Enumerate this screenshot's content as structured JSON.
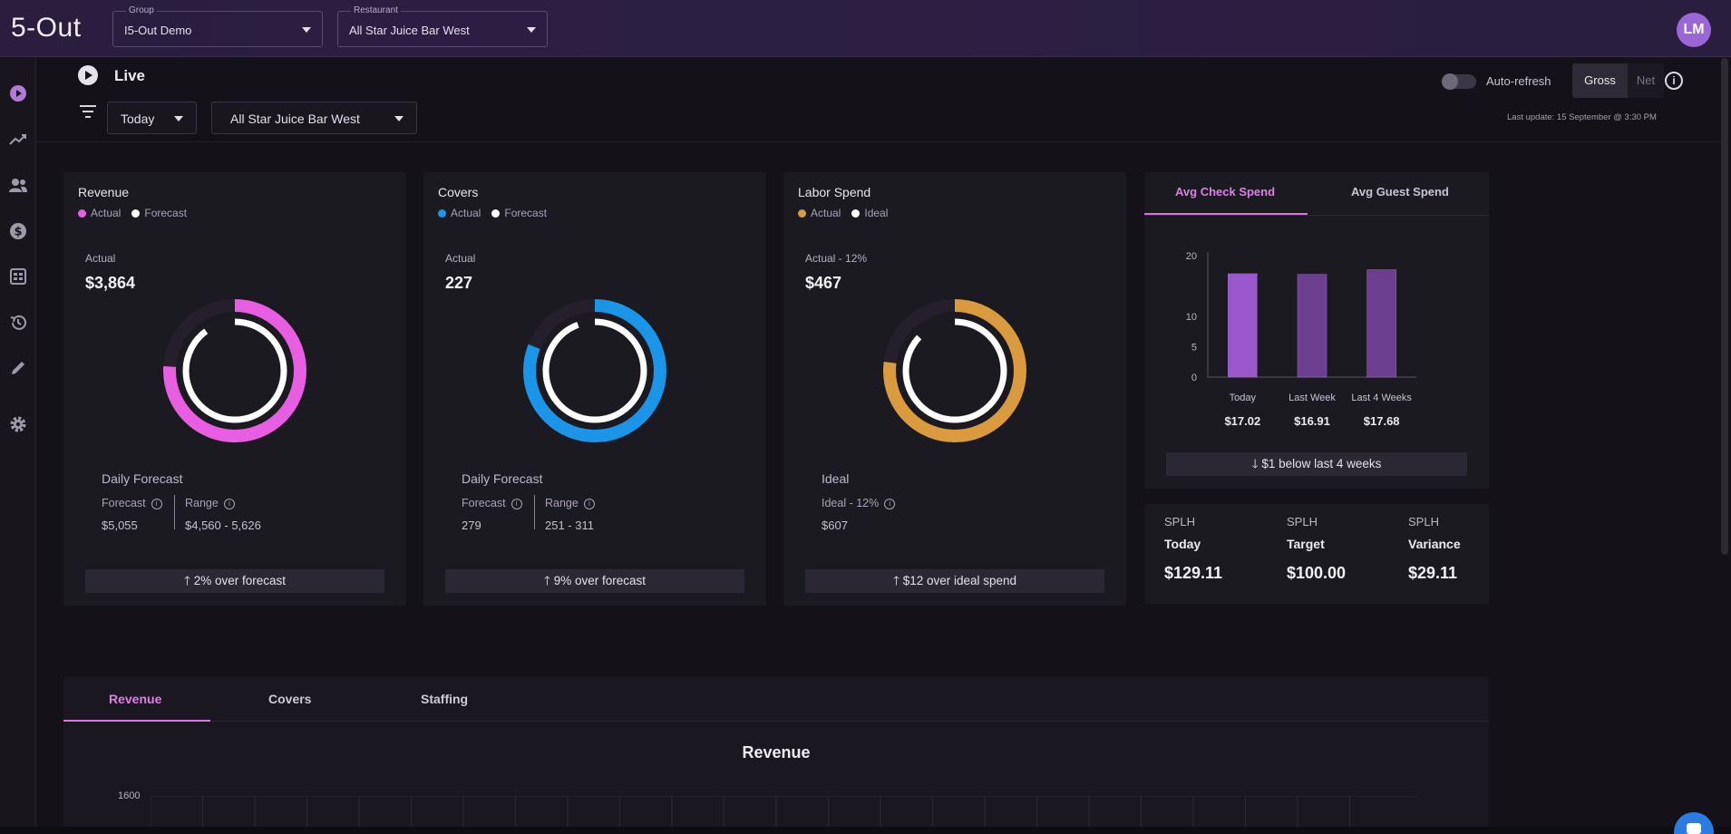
{
  "header": {
    "logo": "5-Out",
    "group": {
      "label": "Group",
      "value": "I5-Out Demo"
    },
    "restaurant": {
      "label": "Restaurant",
      "value": "All Star Juice Bar West"
    },
    "avatar_initials": "LM"
  },
  "sidebar": {
    "items": [
      "live-icon",
      "trends-icon",
      "users-icon",
      "dollar-icon",
      "reports-icon",
      "history-icon",
      "edit-icon",
      "settings-icon"
    ]
  },
  "toolbar": {
    "title": "Live",
    "period": "Today",
    "location": "All Star Juice Bar West",
    "auto_refresh_label": "Auto-refresh",
    "gross_label": "Gross",
    "net_label": "Net",
    "last_update": "Last update: 15 September @ 3:30 PM"
  },
  "revenue_card": {
    "title": "Revenue",
    "legend": [
      "Actual",
      "Forecast"
    ],
    "kpi_label": "Actual",
    "kpi_value": "$3,864",
    "section_label": "Daily Forecast",
    "left_label": "Forecast",
    "left_value": "$5,055",
    "right_label": "Range",
    "right_value": "$4,560 - 5,626",
    "footer": "2% over forecast",
    "ring_fraction": 0.76,
    "color": "#e85ee2"
  },
  "covers_card": {
    "title": "Covers",
    "legend": [
      "Actual",
      "Forecast"
    ],
    "kpi_label": "Actual",
    "kpi_value": "227",
    "section_label": "Daily Forecast",
    "left_label": "Forecast",
    "left_value": "279",
    "right_label": "Range",
    "right_value": "251 - 311",
    "footer": "9% over forecast",
    "ring_fraction": 0.81,
    "color": "#1a95e8"
  },
  "labor_card": {
    "title": "Labor Spend",
    "legend": [
      "Actual",
      "Ideal"
    ],
    "kpi_label": "Actual - 12%",
    "kpi_value": "$467",
    "section_label": "Ideal",
    "left_label": "Ideal - 12%",
    "left_value": "$607",
    "footer": "$12 over ideal spend",
    "ring_fraction": 0.77,
    "color": "#d99b3e"
  },
  "check_panel": {
    "tabs": [
      "Avg Check Spend",
      "Avg Guest Spend"
    ],
    "footer": "$1 below last 4 weeks",
    "chart_data": {
      "type": "bar",
      "categories": [
        "Today",
        "Last Week",
        "Last 4 Weeks"
      ],
      "values": [
        17.02,
        16.91,
        17.68
      ],
      "value_labels": [
        "$17.02",
        "$16.91",
        "$17.68"
      ],
      "yticks": [
        "20",
        "10",
        "5",
        "0"
      ],
      "ylim": [
        0,
        20
      ]
    }
  },
  "splh": {
    "cols": [
      {
        "a": "SPLH",
        "b": "Today",
        "c": "$129.11"
      },
      {
        "a": "SPLH",
        "b": "Target",
        "c": "$100.00"
      },
      {
        "a": "SPLH",
        "b": "Variance",
        "c": "$29.11"
      }
    ]
  },
  "bottom": {
    "tabs": [
      "Revenue",
      "Covers",
      "Staffing"
    ],
    "chart_title": "Revenue",
    "ytick_top": "1600"
  }
}
